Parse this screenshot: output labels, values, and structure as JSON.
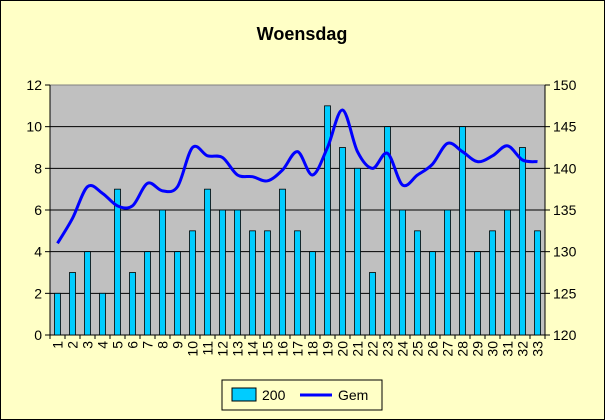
{
  "chart_data": {
    "type": "bar",
    "title": "Woensdag",
    "categories": [
      "1",
      "2",
      "3",
      "4",
      "5",
      "6",
      "7",
      "8",
      "9",
      "10",
      "11",
      "12",
      "13",
      "14",
      "15",
      "16",
      "17",
      "18",
      "19",
      "20",
      "21",
      "22",
      "23",
      "24",
      "25",
      "26",
      "27",
      "28",
      "29",
      "30",
      "31",
      "32",
      "33"
    ],
    "series": [
      {
        "name": "200",
        "type": "bar",
        "axis": "left",
        "values": [
          2,
          3,
          4,
          2,
          7,
          3,
          4,
          6,
          4,
          5,
          7,
          6,
          6,
          5,
          5,
          7,
          5,
          4,
          11,
          9,
          8,
          3,
          10,
          6,
          5,
          4,
          6,
          10,
          4,
          5,
          6,
          9,
          5
        ]
      },
      {
        "name": "Gem",
        "type": "line",
        "axis": "right",
        "values": [
          131,
          134,
          137.8,
          137,
          135.5,
          135.5,
          138.2,
          137.3,
          137.8,
          142.5,
          141.5,
          141.3,
          139.2,
          139,
          138.5,
          139.8,
          142,
          139.2,
          142.5,
          147,
          142,
          140,
          141.8,
          138,
          139.2,
          140.5,
          143,
          142,
          140.8,
          141.5,
          142.7,
          141,
          140.8
        ]
      }
    ],
    "ylim_left": [
      0,
      12
    ],
    "yticks_left": [
      0,
      2,
      4,
      6,
      8,
      10,
      12
    ],
    "ylim_right": [
      120,
      150
    ],
    "yticks_right": [
      120,
      125,
      130,
      135,
      140,
      145,
      150
    ],
    "grid": true,
    "legend_position": "bottom",
    "colors": {
      "background": "#ffffc6",
      "plot_area": "#c0c0c0",
      "bar": "#00ccff",
      "line": "#0000ff"
    }
  }
}
